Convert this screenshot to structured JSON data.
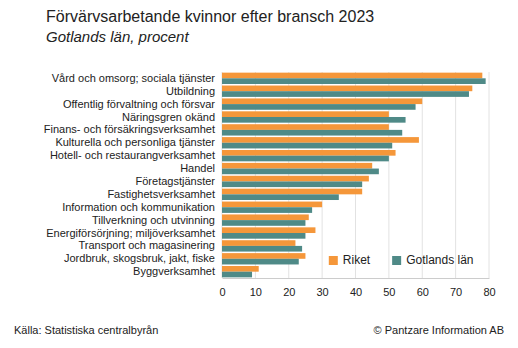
{
  "chart_data": {
    "type": "bar",
    "orientation": "horizontal",
    "title": "Förvärvsarbetande kvinnor efter bransch 2023",
    "subtitle": "Gotlands län, procent",
    "categories": [
      "Vård och omsorg; sociala tjänster",
      "Utbildning",
      "Offentlig förvaltning och försvar",
      "Näringsgren okänd",
      "Finans- och försäkringsverksamhet",
      "Kulturella och personliga tjänster",
      "Hotell- och restaurangverksamhet",
      "Handel",
      "Företagstjänster",
      "Fastighetsverksamhet",
      "Information och kommunikation",
      "Tillverkning och utvinning",
      "Energiförsörjning; miljöverksamhet",
      "Transport och magasinering",
      "Jordbruk, skogsbruk, jakt, fiske",
      "Byggverksamhet"
    ],
    "series": [
      {
        "name": "Riket",
        "color": "#f5973a",
        "values": [
          78,
          75,
          60,
          50,
          50,
          59,
          52,
          45,
          44,
          42,
          30,
          26,
          28,
          22,
          25,
          11
        ]
      },
      {
        "name": "Gotlands län",
        "color": "#4f8a87",
        "values": [
          79,
          74,
          58,
          55,
          54,
          51,
          50,
          47,
          42,
          35,
          27,
          25,
          25,
          24,
          23,
          9
        ]
      }
    ],
    "xlim": [
      0,
      80
    ],
    "xticks": [
      0,
      10,
      20,
      30,
      40,
      50,
      60,
      70,
      80
    ],
    "grid": true,
    "legend": "lower right",
    "annotations": [
      "Källa: Statistiska centralbyrån",
      "© Pantzare Information AB"
    ]
  }
}
